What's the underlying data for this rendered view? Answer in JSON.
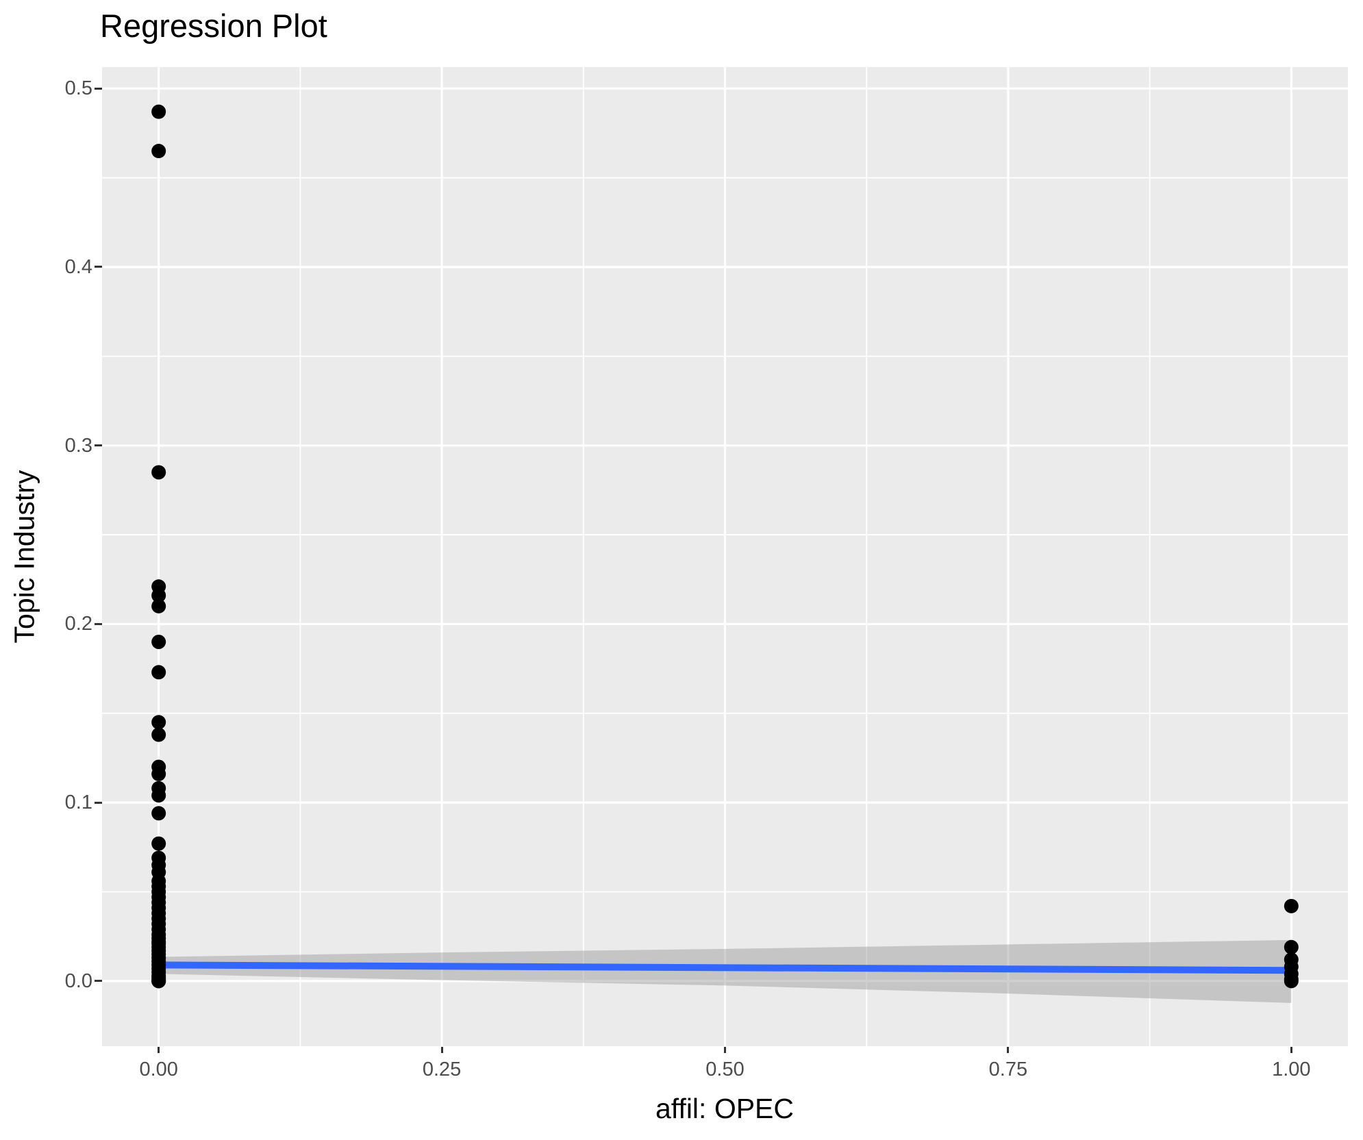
{
  "figure": {
    "title": "Regression Plot",
    "x_axis_title": "affil: OPEC",
    "y_axis_title": "Topic Industry"
  },
  "chart_data": {
    "type": "scatter",
    "title": "Regression Plot",
    "xlabel": "affil: OPEC",
    "ylabel": "Topic Industry",
    "grid": true,
    "legend": false,
    "xlim": [
      -0.05,
      1.05
    ],
    "ylim": [
      -0.0365,
      0.512
    ],
    "x_major_ticks": [
      0,
      0.25,
      0.5,
      0.75,
      1
    ],
    "x_tick_labels": [
      "0.00",
      "0.25",
      "0.50",
      "0.75",
      "1.00"
    ],
    "x_minor_ticks": [
      0.125,
      0.375,
      0.625,
      0.875
    ],
    "y_major_ticks": [
      0,
      0.1,
      0.2,
      0.3,
      0.4,
      0.5
    ],
    "y_tick_labels": [
      "0.0",
      "0.1",
      "0.2",
      "0.3",
      "0.4",
      "0.5"
    ],
    "y_minor_ticks": [
      0.05,
      0.15,
      0.25,
      0.35,
      0.45
    ],
    "points_at_x0": [
      0.487,
      0.465,
      0.285,
      0.221,
      0.216,
      0.21,
      0.19,
      0.173,
      0.145,
      0.138,
      0.12,
      0.116,
      0.108,
      0.104,
      0.094,
      0.077,
      0.069,
      0.065,
      0.061,
      0.056,
      0.053,
      0.05,
      0.047,
      0.044,
      0.041,
      0.038,
      0.035,
      0.032,
      0.029,
      0.026,
      0.024,
      0.022,
      0.021,
      0.019,
      0.017,
      0.015,
      0.013,
      0.011,
      0.009,
      0.007,
      0.005,
      0.003,
      0.002,
      0.001,
      0.0,
      0.0,
      0.0
    ],
    "points_at_x1": [
      0.042,
      0.019,
      0.012,
      0.008,
      0.004,
      0.001,
      0.0
    ],
    "regression_line": {
      "x": [
        0,
        1
      ],
      "y": [
        0.009,
        0.006
      ]
    },
    "confidence_band": {
      "x": [
        0,
        0.25,
        0.5,
        0.75,
        1
      ],
      "upper": [
        0.0135,
        0.016,
        0.018,
        0.0205,
        0.023
      ],
      "lower": [
        0.004,
        0.0005,
        -0.0025,
        -0.007,
        -0.0123
      ]
    },
    "colors": {
      "panel_bg": "#EBEBEB",
      "grid": "#FFFFFF",
      "point": "#000000",
      "line": "#3366FF",
      "band": "rgba(150,150,150,0.45)",
      "tick_label": "#4D4D4D",
      "tick_mark": "#333333",
      "text": "#000000",
      "background": "#FFFFFF"
    }
  }
}
